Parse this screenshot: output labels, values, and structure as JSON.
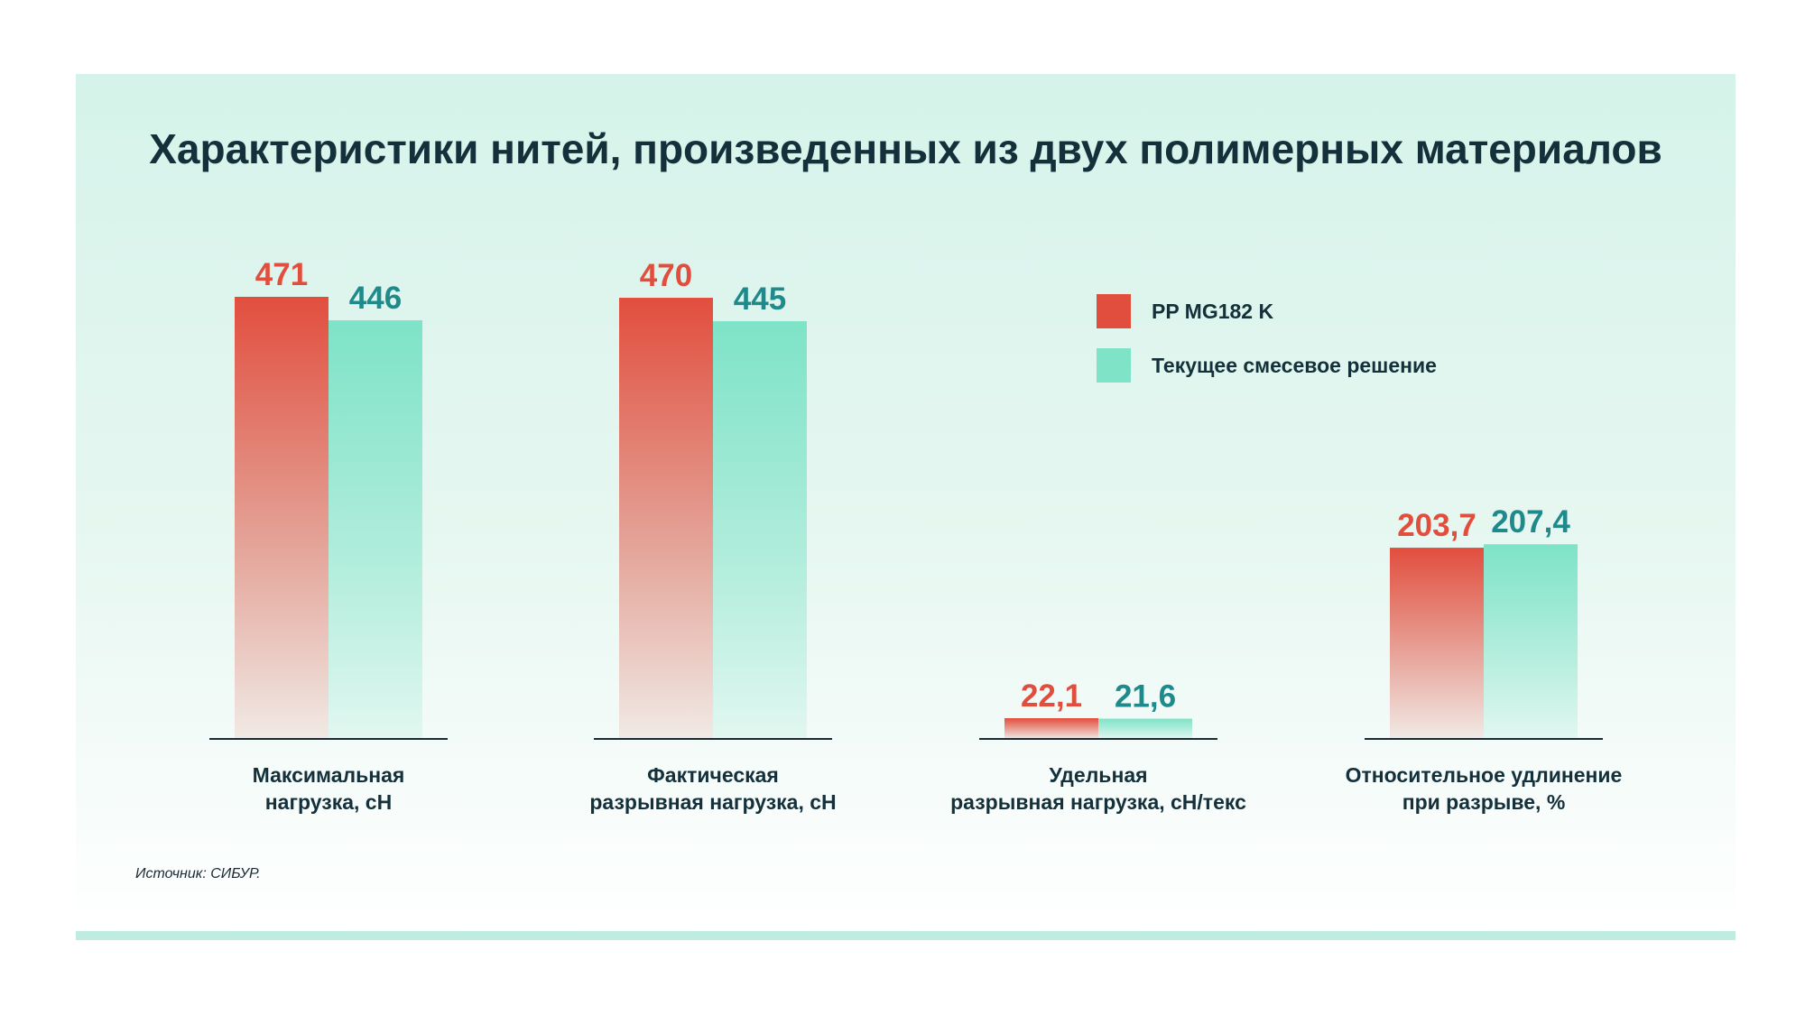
{
  "title": "Характеристики нитей, произведенных из двух полимерных материалов",
  "source": "Источник: СИБУР.",
  "colors": {
    "series1": "#e24e3e",
    "series2": "#7ee3c7",
    "series1_label": "#e24e3e",
    "series2_label": "#1e8a8c",
    "text": "#13303b"
  },
  "chart_data": {
    "type": "bar",
    "title": "Характеристики нитей, произведенных из двух полимерных материалов",
    "legend_position": "top-right",
    "grid": false,
    "categories": [
      [
        "Максимальная",
        "нагрузка, сН"
      ],
      [
        "Фактическая",
        "разрывная нагрузка, сН"
      ],
      [
        "Удельная",
        "разрывная нагрузка, сН/текс"
      ],
      [
        "Относительное удлинение",
        "при разрыве, %"
      ]
    ],
    "series": [
      {
        "name": "PP MG182 K",
        "values": [
          471,
          470,
          22.1,
          203.7
        ],
        "labels": [
          "471",
          "470",
          "22,1",
          "203,7"
        ]
      },
      {
        "name": "Текущее смесевое решение",
        "values": [
          446,
          445,
          21.6,
          207.4
        ],
        "labels": [
          "446",
          "445",
          "21,6",
          "207,4"
        ]
      }
    ],
    "ylim": [
      0,
      471
    ]
  }
}
